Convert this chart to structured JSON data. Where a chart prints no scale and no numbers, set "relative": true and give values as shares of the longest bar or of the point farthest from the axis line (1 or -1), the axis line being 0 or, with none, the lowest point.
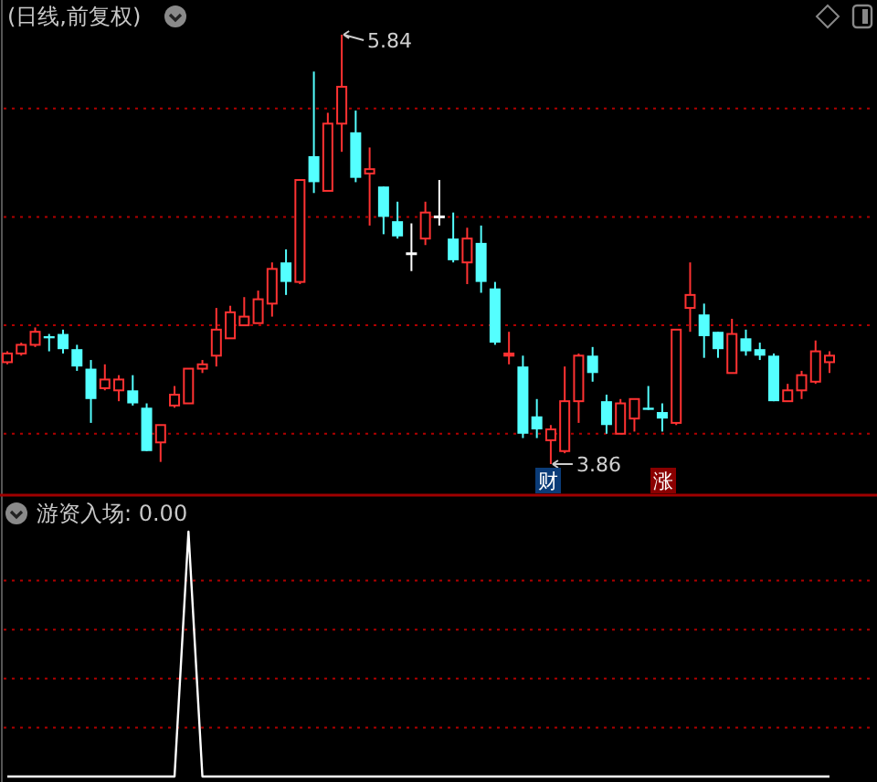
{
  "chart_data": [
    {
      "type": "candlestick",
      "title": "(日线,前复权)",
      "categories": [
        null,
        null,
        null,
        null,
        null,
        null,
        null,
        null,
        null,
        null,
        null,
        null,
        null,
        null,
        null,
        null,
        null,
        null,
        null,
        null,
        null,
        null,
        null,
        null,
        null,
        null,
        null,
        null,
        null,
        null,
        null,
        null,
        null,
        null,
        null,
        null,
        null,
        null,
        null,
        null,
        null,
        null,
        null,
        null,
        null,
        null,
        null,
        null,
        null,
        null,
        null,
        null,
        null,
        null,
        null,
        null,
        null,
        null,
        null,
        null
      ],
      "ohlc": [
        [
          4.33,
          4.38,
          4.32,
          4.37
        ],
        [
          4.37,
          4.42,
          4.36,
          4.41
        ],
        [
          4.41,
          4.49,
          4.4,
          4.47
        ],
        [
          4.45,
          4.46,
          4.38,
          4.44
        ],
        [
          4.46,
          4.48,
          4.37,
          4.39
        ],
        [
          4.39,
          4.41,
          4.29,
          4.31
        ],
        [
          4.3,
          4.34,
          4.05,
          4.16
        ],
        [
          4.21,
          4.32,
          4.2,
          4.25
        ],
        [
          4.2,
          4.27,
          4.15,
          4.25
        ],
        [
          4.2,
          4.27,
          4.13,
          4.14
        ],
        [
          4.12,
          4.14,
          3.92,
          3.92
        ],
        [
          3.96,
          4.04,
          3.87,
          4.04
        ],
        [
          4.13,
          4.22,
          4.12,
          4.18
        ],
        [
          4.14,
          4.3,
          4.14,
          4.3
        ],
        [
          4.3,
          4.34,
          4.28,
          4.32
        ],
        [
          4.36,
          4.58,
          4.31,
          4.48
        ],
        [
          4.44,
          4.59,
          4.44,
          4.56
        ],
        [
          4.5,
          4.63,
          4.5,
          4.54
        ],
        [
          4.51,
          4.66,
          4.51,
          4.62
        ],
        [
          4.6,
          4.79,
          4.54,
          4.76
        ],
        [
          4.79,
          4.85,
          4.64,
          4.7
        ],
        [
          4.7,
          5.17,
          4.69,
          5.17
        ],
        [
          5.28,
          5.67,
          5.11,
          5.16
        ],
        [
          5.12,
          5.48,
          5.12,
          5.43
        ],
        [
          5.43,
          5.84,
          5.3,
          5.6
        ],
        [
          5.39,
          5.49,
          5.16,
          5.18
        ],
        [
          5.2,
          5.32,
          4.96,
          5.22
        ],
        [
          5.14,
          5.14,
          4.92,
          5.0
        ],
        [
          4.98,
          5.07,
          4.9,
          4.91
        ],
        [
          4.83,
          4.97,
          4.75,
          4.83
        ],
        [
          4.9,
          5.07,
          4.87,
          5.02
        ],
        [
          5.0,
          5.17,
          4.96,
          5.0
        ],
        [
          4.9,
          5.02,
          4.79,
          4.8
        ],
        [
          4.79,
          4.95,
          4.69,
          4.9
        ],
        [
          4.88,
          4.96,
          4.65,
          4.7
        ],
        [
          4.67,
          4.7,
          4.41,
          4.42
        ],
        [
          4.36,
          4.47,
          4.32,
          4.37
        ],
        [
          4.31,
          4.36,
          3.98,
          4.0
        ],
        [
          4.08,
          4.16,
          3.98,
          4.02
        ],
        [
          3.97,
          4.04,
          3.86,
          4.02
        ],
        [
          3.92,
          4.31,
          3.91,
          4.15
        ],
        [
          4.15,
          4.37,
          4.05,
          4.36
        ],
        [
          4.36,
          4.4,
          4.24,
          4.28
        ],
        [
          4.15,
          4.18,
          4.0,
          4.04
        ],
        [
          4.0,
          4.16,
          4.0,
          4.14
        ],
        [
          4.07,
          4.16,
          4.01,
          4.16
        ],
        [
          4.12,
          4.22,
          4.11,
          4.11
        ],
        [
          4.1,
          4.14,
          4.01,
          4.07
        ],
        [
          4.05,
          4.48,
          4.04,
          4.48
        ],
        [
          4.58,
          4.79,
          4.47,
          4.64
        ],
        [
          4.55,
          4.6,
          4.35,
          4.45
        ],
        [
          4.47,
          4.47,
          4.35,
          4.39
        ],
        [
          4.28,
          4.53,
          4.28,
          4.46
        ],
        [
          4.44,
          4.48,
          4.36,
          4.38
        ],
        [
          4.39,
          4.42,
          4.34,
          4.36
        ],
        [
          4.36,
          4.37,
          4.15,
          4.15
        ],
        [
          4.15,
          4.23,
          4.15,
          4.2
        ],
        [
          4.2,
          4.29,
          4.16,
          4.27
        ],
        [
          4.24,
          4.43,
          4.23,
          4.38
        ],
        [
          4.33,
          4.38,
          4.28,
          4.36
        ]
      ],
      "colors": [
        "#ff3232",
        "#ff3232",
        "#ff3232",
        "#54ffff",
        "#54ffff",
        "#54ffff",
        "#54ffff",
        "#ff3232",
        "#ff3232",
        "#54ffff",
        "#54ffff",
        "#ff3232",
        "#ff3232",
        "#ff3232",
        "#ff3232",
        "#ff3232",
        "#ff3232",
        "#ff3232",
        "#ff3232",
        "#ff3232",
        "#54ffff",
        "#ff3232",
        "#54ffff",
        "#ff3232",
        "#ff3232",
        "#54ffff",
        "#ff3232",
        "#54ffff",
        "#54ffff",
        "#ffffff",
        "#ff3232",
        "#ffffff",
        "#54ffff",
        "#ff3232",
        "#54ffff",
        "#54ffff",
        "#ff3232",
        "#54ffff",
        "#54ffff",
        "#ff3232",
        "#ff3232",
        "#ff3232",
        "#54ffff",
        "#54ffff",
        "#ff3232",
        "#ff3232",
        "#54ffff",
        "#54ffff",
        "#ff3232",
        "#ff3232",
        "#54ffff",
        "#54ffff",
        "#ff3232",
        "#54ffff",
        "#54ffff",
        "#54ffff",
        "#ff3232",
        "#ff3232",
        "#ff3232",
        "#ff3232"
      ],
      "yticks": [
        {
          "value": 5.5,
          "label": null
        },
        {
          "value": 5.0,
          "label": null
        },
        {
          "value": 4.5,
          "label": null
        },
        {
          "value": 4.0,
          "label": null
        }
      ],
      "grid": "y",
      "annotations": [
        "5.84",
        "3.86",
        "财",
        "涨"
      ]
    },
    {
      "type": "line",
      "title": "游资入场: 0.00",
      "categories": [
        null,
        null,
        null,
        null,
        null,
        null,
        null,
        null,
        null,
        null,
        null,
        null,
        null,
        null,
        null,
        null,
        null,
        null,
        null,
        null,
        null,
        null,
        null,
        null,
        null,
        null,
        null,
        null,
        null,
        null,
        null,
        null,
        null,
        null,
        null,
        null,
        null,
        null,
        null,
        null,
        null,
        null,
        null,
        null,
        null,
        null,
        null,
        null,
        null,
        null,
        null,
        null,
        null,
        null,
        null,
        null,
        null,
        null,
        null,
        null
      ],
      "values": [
        0,
        0,
        0,
        0,
        0,
        0,
        0,
        0,
        0,
        0,
        0,
        0,
        0,
        1,
        0,
        0,
        0,
        0,
        0,
        0,
        0,
        0,
        0,
        0,
        0,
        0,
        0,
        0,
        0,
        0,
        0,
        0,
        0,
        0,
        0,
        0,
        0,
        0,
        0,
        0,
        0,
        0,
        0,
        0,
        0,
        0,
        0,
        0,
        0,
        0,
        0,
        0,
        0,
        0,
        0,
        0,
        0,
        0,
        0,
        0
      ],
      "color": "#ffffff",
      "relative": true,
      "ref_lines": [
        {
          "axis": "y",
          "value": 0.8,
          "color": "#b00000",
          "line_style": "dotted"
        },
        {
          "axis": "y",
          "value": 0.6,
          "color": "#b00000",
          "line_style": "dotted"
        },
        {
          "axis": "y",
          "value": 0.4,
          "color": "#b00000",
          "line_style": "dotted"
        },
        {
          "axis": "y",
          "value": 0.2,
          "color": "#b00000",
          "line_style": "dotted"
        }
      ]
    }
  ]
}
